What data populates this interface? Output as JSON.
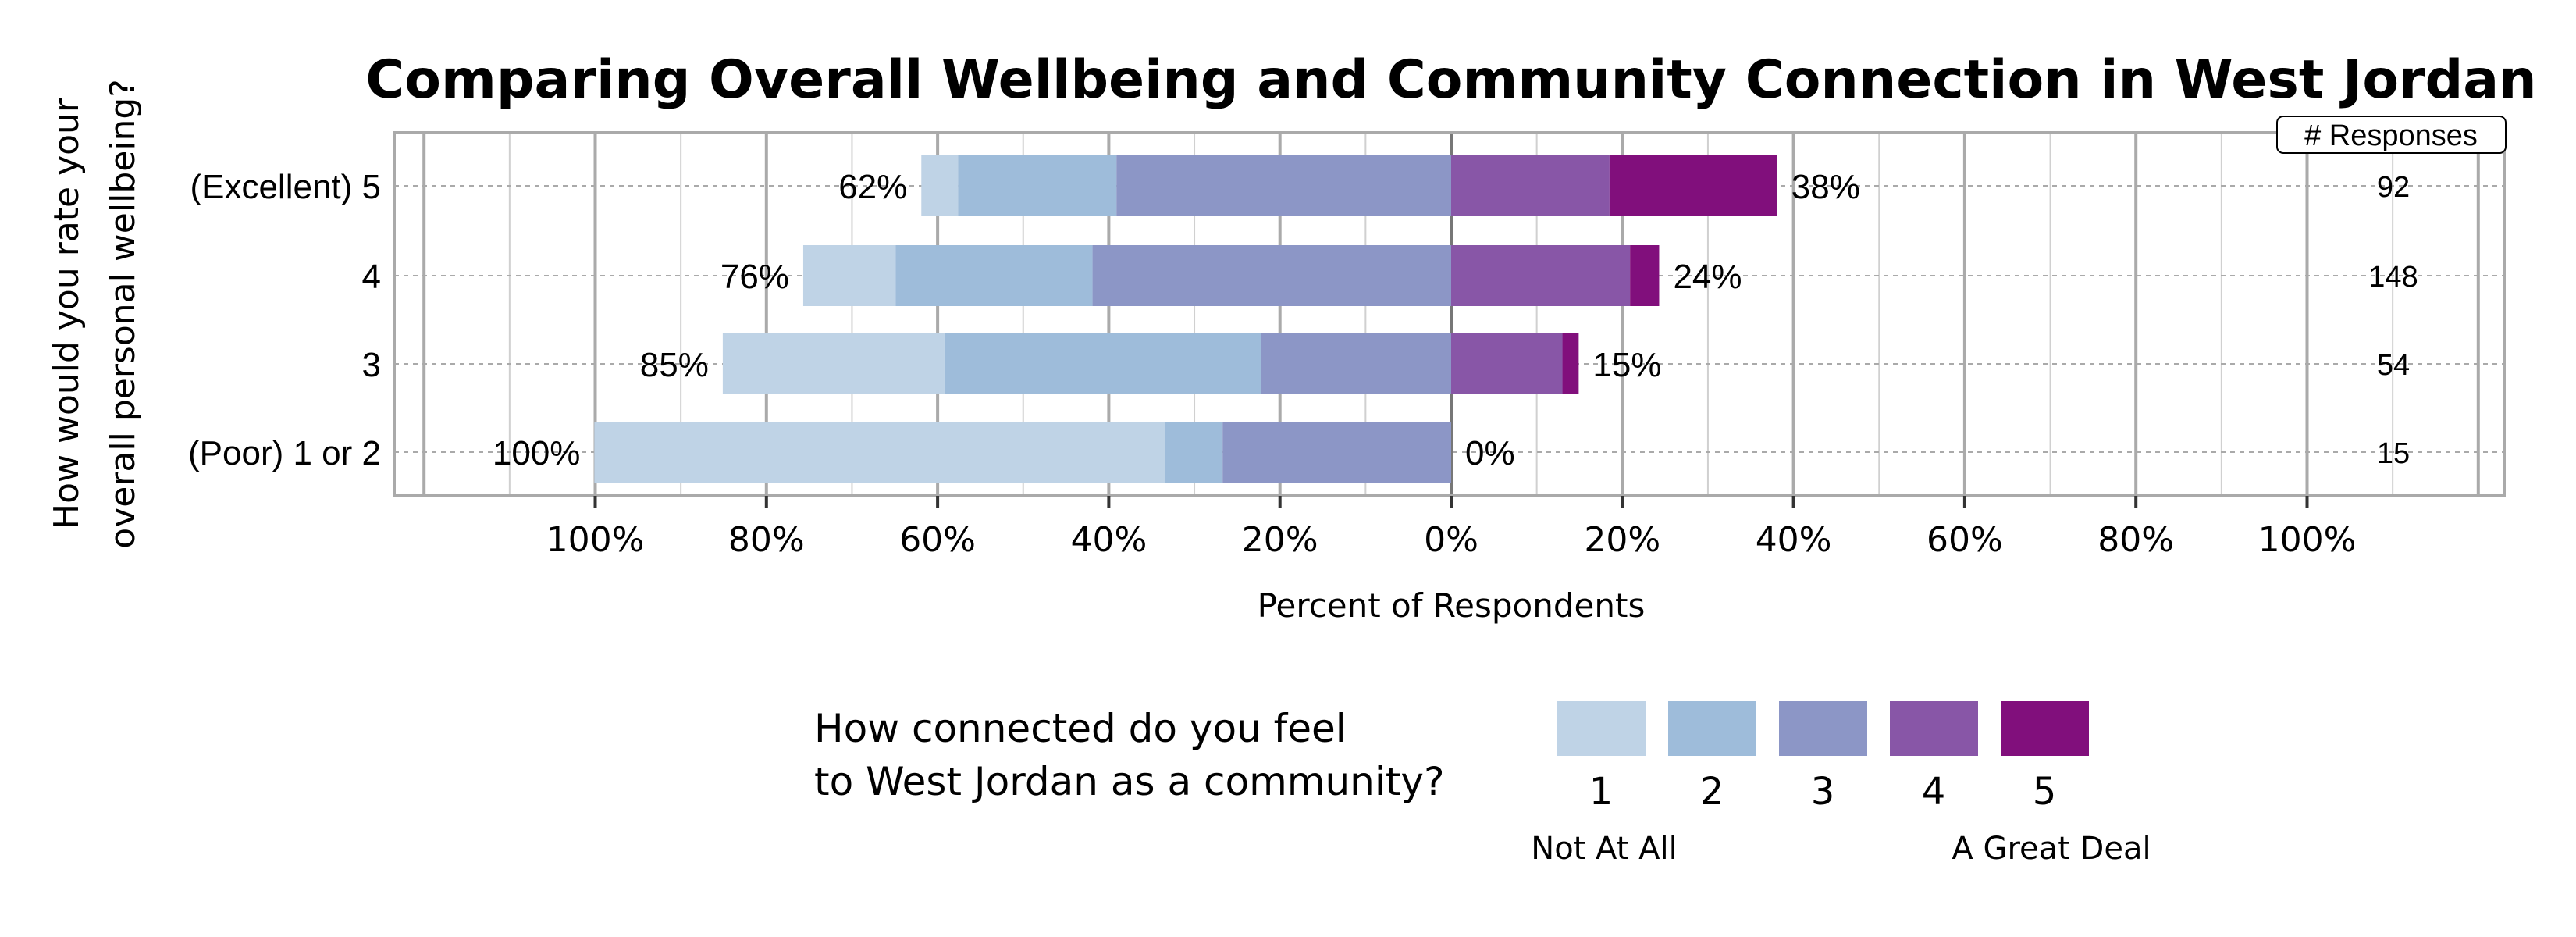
{
  "chart_data": {
    "type": "bar",
    "orientation": "horizontal-diverging-stacked",
    "title": "Comparing Overall Wellbeing and Community Connection in West Jordan",
    "xlabel": "Percent of Respondents",
    "ylabel": "How would you rate your overall personal wellbeing?",
    "ylabel_lines": [
      "How would you rate your",
      "overall personal wellbeing?"
    ],
    "xlim": [
      -123,
      123
    ],
    "x_ticks": [
      -100,
      -80,
      -60,
      -40,
      -20,
      0,
      20,
      40,
      60,
      80,
      100
    ],
    "x_tick_labels": [
      "100%",
      "80%",
      "60%",
      "40%",
      "20%",
      "0%",
      "20%",
      "40%",
      "60%",
      "80%",
      "100%"
    ],
    "grid": true,
    "categories": [
      "(Excellent) 5",
      "4",
      "3",
      "(Poor) 1 or 2"
    ],
    "series": [
      {
        "name": "1",
        "color": "#bfd3e6",
        "values": [
          4.3,
          10.8,
          25.9,
          66.7
        ]
      },
      {
        "name": "2",
        "color": "#9ebcda",
        "values": [
          18.5,
          23.0,
          37.0,
          6.7
        ]
      },
      {
        "name": "3",
        "color": "#8c96c6",
        "values": [
          39.1,
          41.9,
          22.2,
          26.7
        ]
      },
      {
        "name": "4",
        "color": "#8856a7",
        "values": [
          18.5,
          20.9,
          13.0,
          0
        ]
      },
      {
        "name": "5",
        "color": "#810f7c",
        "values": [
          19.6,
          3.4,
          1.9,
          0
        ]
      }
    ],
    "left_labels": [
      "62%",
      "76%",
      "85%",
      "100%"
    ],
    "right_labels": [
      "38%",
      "24%",
      "15%",
      "0%"
    ],
    "responses_header": "# Responses",
    "responses": [
      "92",
      "148",
      "54",
      "15"
    ],
    "legend": {
      "title_lines": [
        "How connected do you feel",
        "to West Jordan as a community?"
      ],
      "low_label": "Not At All",
      "high_label": "A Great Deal",
      "placement": "bottom"
    }
  }
}
